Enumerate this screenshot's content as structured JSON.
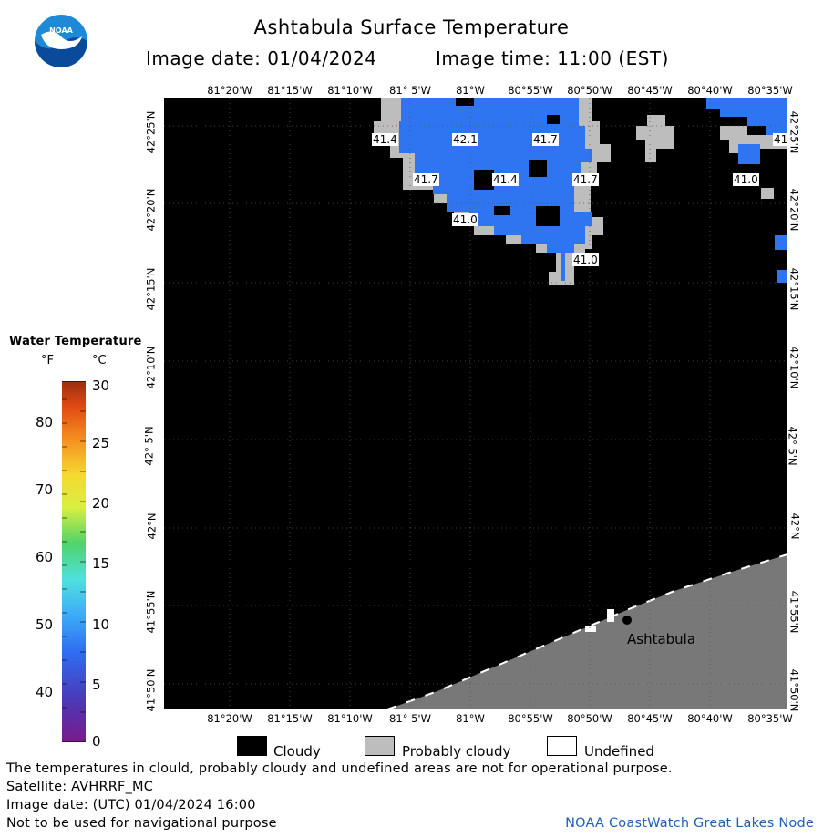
{
  "header": {
    "title": "Ashtabula Surface Temperature",
    "image_date": "Image date: 01/04/2024",
    "image_time": "Image time: 11:00 (EST)"
  },
  "map": {
    "lon_labels": [
      "81°20'W",
      "81°15'W",
      "81°10'W",
      "81° 5'W",
      "81°W",
      "80°55'W",
      "80°50'W",
      "80°45'W",
      "80°40'W",
      "80°35'W"
    ],
    "lat_labels": [
      "42°25'N",
      "42°20'N",
      "42°15'N",
      "42°10'N",
      "42° 5'N",
      "42°N",
      "41°55'N",
      "41°50'N"
    ],
    "place_label": "Ashtabula",
    "temperature_labels": [
      "41.4",
      "42.1",
      "41.7",
      "41.7",
      "41.4",
      "41.7",
      "41.0",
      "41.0",
      "41.0",
      "41"
    ],
    "colors": {
      "cloudy": "#000000",
      "probably_cloudy": "#bdbdbd",
      "land": "#787878",
      "water_blue": "#2f74f0"
    }
  },
  "legend": {
    "title": "Water Temperature",
    "unit_f": "°F",
    "unit_c": "°C",
    "f_ticks": [
      "80",
      "70",
      "60",
      "50",
      "40"
    ],
    "c_ticks": [
      "30",
      "25",
      "20",
      "15",
      "10",
      "5",
      "0"
    ]
  },
  "key": {
    "cloudy": "Cloudy",
    "probably_cloudy": "Probably cloudy",
    "undefined": "Undefined"
  },
  "footer": {
    "line1": "The temperatures in clould, probably cloudy and undefined areas are not for operational purpose.",
    "line2": "Satellite: AVHRRF_MC",
    "line3": "Image date: (UTC) 01/04/2024  16:00",
    "line4": "Not to be used for navigational purpose",
    "credit": "NOAA CoastWatch Great Lakes Node"
  }
}
